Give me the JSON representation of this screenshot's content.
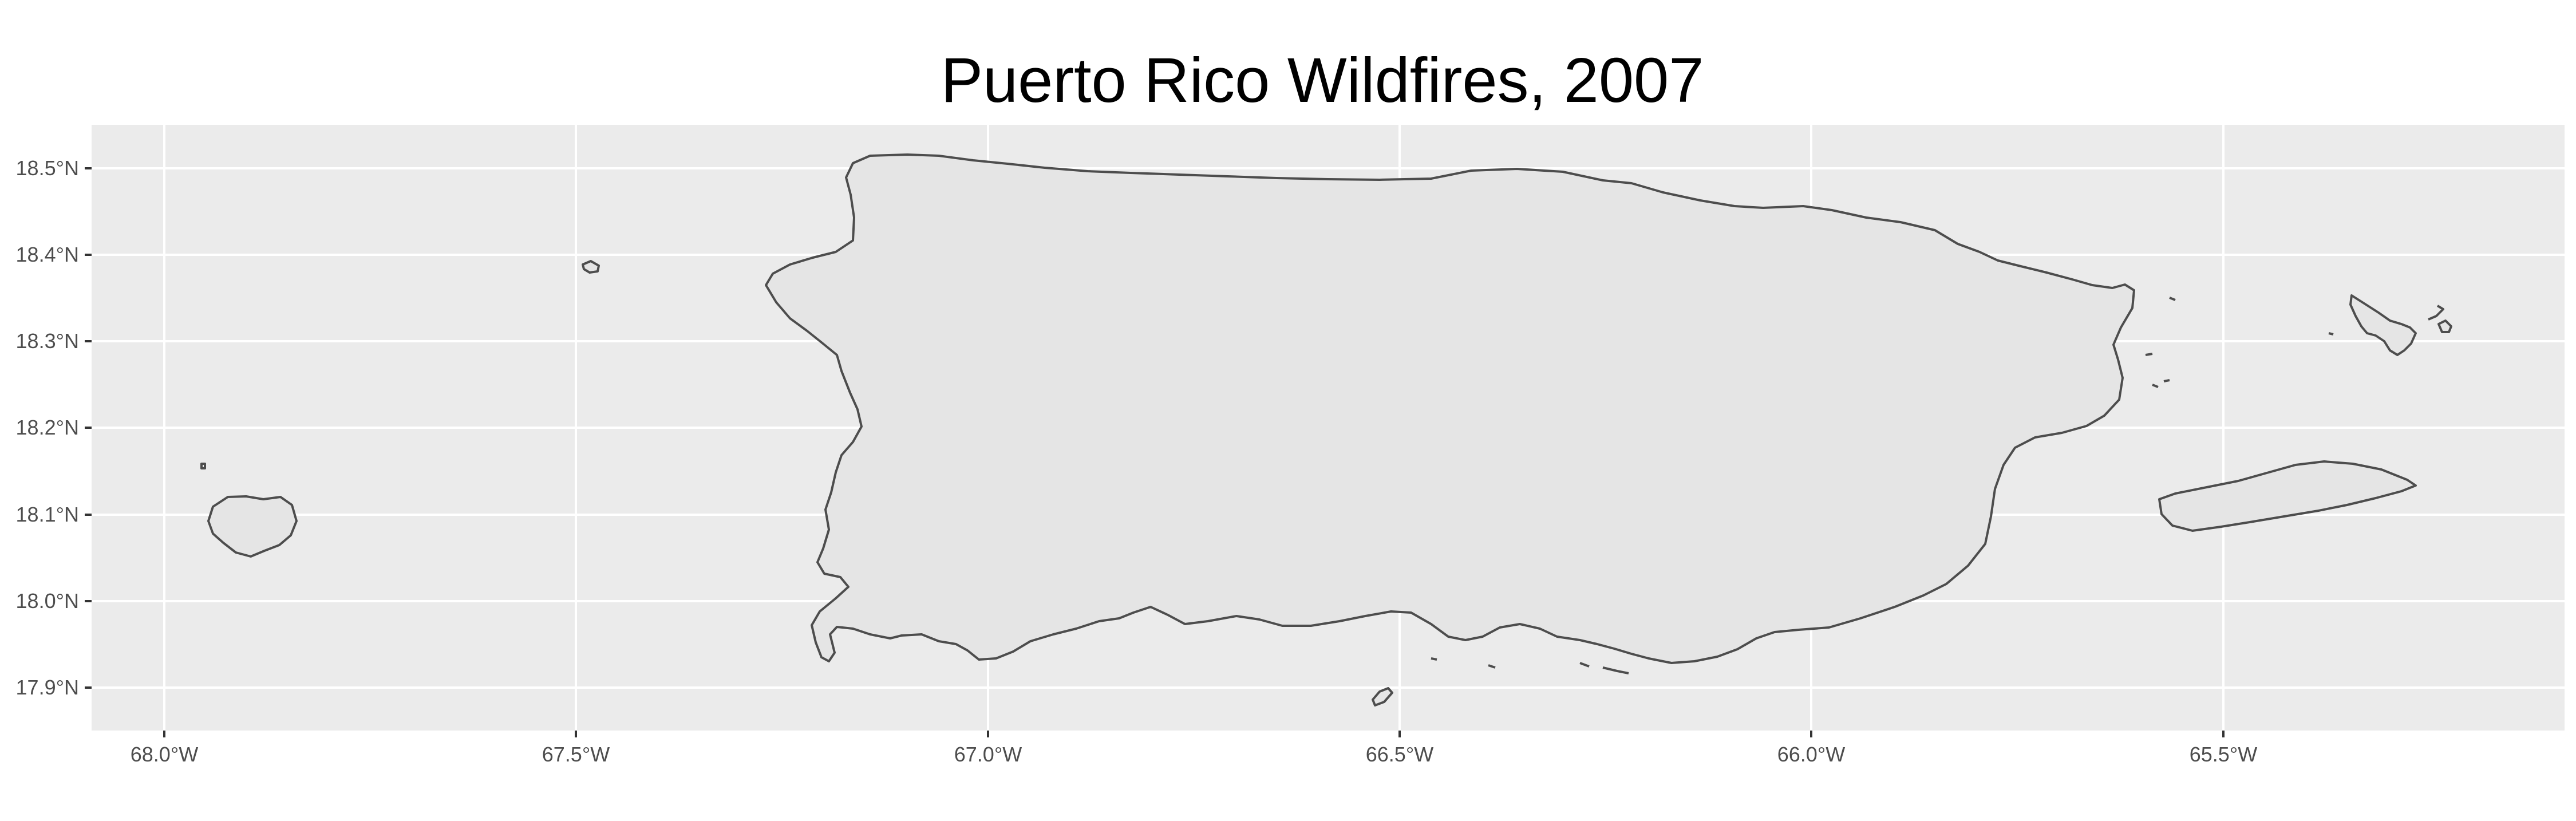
{
  "title": "Puerto Rico Wildfires, 2007",
  "colors": {
    "panel_background": "#ebebeb",
    "grid": "#ffffff",
    "land_fill": "#e5e5e5",
    "land_outline": "#4d4d4d",
    "tick_text": "#4d4d4d"
  },
  "axes": {
    "x": {
      "ticks": [
        "68.0°W",
        "67.5°W",
        "67.0°W",
        "66.5°W",
        "66.0°W",
        "65.5°W"
      ],
      "values": [
        -68.0,
        -67.5,
        -67.0,
        -66.5,
        -66.0,
        -65.5
      ],
      "range": [
        -68.09,
        -65.09
      ]
    },
    "y": {
      "ticks": [
        "18.5°N",
        "18.4°N",
        "18.3°N",
        "18.2°N",
        "18.1°N",
        "18.0°N",
        "17.9°N"
      ],
      "values": [
        18.5,
        18.4,
        18.3,
        18.2,
        18.1,
        18.0,
        17.9
      ],
      "range": [
        17.85,
        18.55
      ]
    }
  },
  "features": [
    {
      "name": "Puerto Rico",
      "type": "main-island"
    },
    {
      "name": "Mona",
      "type": "island"
    },
    {
      "name": "Desecheo",
      "type": "island"
    },
    {
      "name": "Vieques",
      "type": "island"
    },
    {
      "name": "Culebra",
      "type": "island"
    },
    {
      "name": "Caja de Muertos",
      "type": "island"
    }
  ]
}
